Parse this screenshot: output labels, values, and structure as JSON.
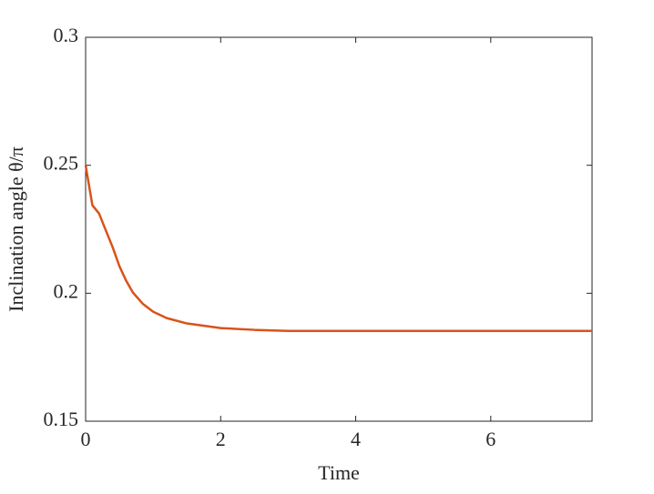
{
  "chart_data": {
    "type": "line",
    "xlabel": "Time",
    "ylabel": "Inclination angle θ/π",
    "x": [
      0,
      0.1,
      0.2,
      0.3,
      0.4,
      0.5,
      0.6,
      0.7,
      0.85,
      1.0,
      1.2,
      1.5,
      2.0,
      2.5,
      3.0,
      4.0,
      5.0,
      6.0,
      7.0,
      7.5
    ],
    "series": [
      {
        "color": "#D95319",
        "values": [
          0.25,
          0.2344,
          0.2311,
          0.2245,
          0.218,
          0.2106,
          0.2049,
          0.2003,
          0.1958,
          0.1928,
          0.1903,
          0.1882,
          0.1864,
          0.1857,
          0.1853,
          0.1853,
          0.1853,
          0.1853,
          0.1853,
          0.1853
        ]
      }
    ],
    "xlim": [
      0,
      7.5
    ],
    "xticks": [
      0,
      2,
      4,
      6
    ],
    "ylim": [
      0.15,
      0.3
    ],
    "yticks": [
      0.15,
      0.2,
      0.25,
      0.3
    ],
    "grid": false
  }
}
